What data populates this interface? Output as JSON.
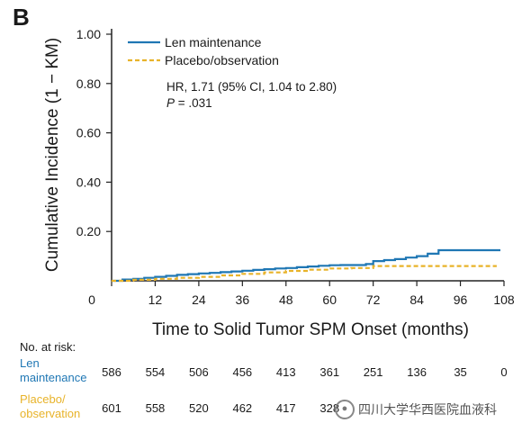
{
  "panel": "B",
  "colors": {
    "len": "#1f77b4",
    "placebo": "#e8b32a",
    "axis": "#222222"
  },
  "chart_data": {
    "type": "line",
    "ylabel": "Cumulative Incidence (1 − KM)",
    "xlabel": "Time to Solid Tumor SPM Onset (months)",
    "xlim": [
      0,
      108
    ],
    "ylim": [
      0,
      1.0
    ],
    "x_ticks": [
      0,
      12,
      24,
      36,
      48,
      60,
      72,
      84,
      96,
      108
    ],
    "y_ticks": [
      0.2,
      0.4,
      0.6,
      0.8,
      1.0
    ],
    "y_tick_labels": [
      "0.20",
      "0.40",
      "0.60",
      "0.80",
      "1.00"
    ],
    "legend_position": "top-left",
    "series": [
      {
        "name": "Len maintenance",
        "style": "solid",
        "x": [
          0,
          3,
          6,
          9,
          12,
          15,
          18,
          21,
          24,
          27,
          30,
          33,
          36,
          39,
          42,
          45,
          48,
          51,
          54,
          57,
          60,
          63,
          66,
          69,
          70,
          72,
          75,
          78,
          81,
          84,
          87,
          90,
          96,
          102,
          107
        ],
        "y": [
          0,
          0.005,
          0.008,
          0.012,
          0.016,
          0.02,
          0.024,
          0.027,
          0.03,
          0.032,
          0.035,
          0.038,
          0.041,
          0.044,
          0.047,
          0.05,
          0.052,
          0.055,
          0.058,
          0.061,
          0.063,
          0.064,
          0.064,
          0.064,
          0.068,
          0.08,
          0.084,
          0.088,
          0.094,
          0.1,
          0.11,
          0.124,
          0.124,
          0.124,
          0.124
        ]
      },
      {
        "name": "Placebo/observation",
        "style": "dashed",
        "x": [
          0,
          6,
          12,
          18,
          24,
          30,
          36,
          42,
          48,
          54,
          60,
          66,
          70,
          72,
          78,
          84,
          90,
          96,
          102,
          106
        ],
        "y": [
          0,
          0.004,
          0.008,
          0.012,
          0.016,
          0.022,
          0.028,
          0.034,
          0.04,
          0.045,
          0.05,
          0.052,
          0.052,
          0.06,
          0.06,
          0.06,
          0.06,
          0.06,
          0.06,
          0.06
        ]
      }
    ],
    "annotations": {
      "hr": "HR, 1.71 (95% CI, 1.04 to 2.80)",
      "p_label": "P",
      "p_value": " = .031"
    }
  },
  "risk_table": {
    "title": "No. at risk:",
    "rows": [
      {
        "label": "Len\nmaintenance",
        "values": [
          "586",
          "554",
          "506",
          "456",
          "413",
          "361",
          "251",
          "136",
          "35",
          "0"
        ]
      },
      {
        "label": "Placebo/\nobservation",
        "values": [
          "601",
          "558",
          "520",
          "462",
          "417",
          "328",
          "",
          "",
          "",
          ""
        ]
      }
    ]
  },
  "watermark": "四川大学华西医院血液科"
}
